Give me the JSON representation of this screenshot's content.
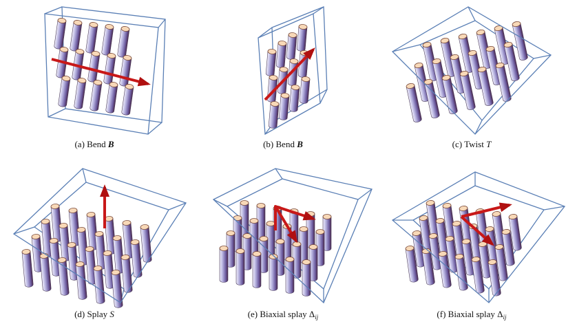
{
  "figure": {
    "panels": [
      {
        "label": "(a)",
        "name": "Bend",
        "symbol": "B"
      },
      {
        "label": "(b)",
        "name": "Bend",
        "symbol": "B"
      },
      {
        "label": "(c)",
        "name": "Twist",
        "symbol": "T"
      },
      {
        "label": "(d)",
        "name": "Splay",
        "symbol": "S"
      },
      {
        "label": "(e)",
        "name": "Biaxial splay",
        "symbol": "Δ",
        "subscript": "ij"
      },
      {
        "label": "(f)",
        "name": "Biaxial splay",
        "symbol": "Δ",
        "subscript": "ij"
      }
    ]
  }
}
